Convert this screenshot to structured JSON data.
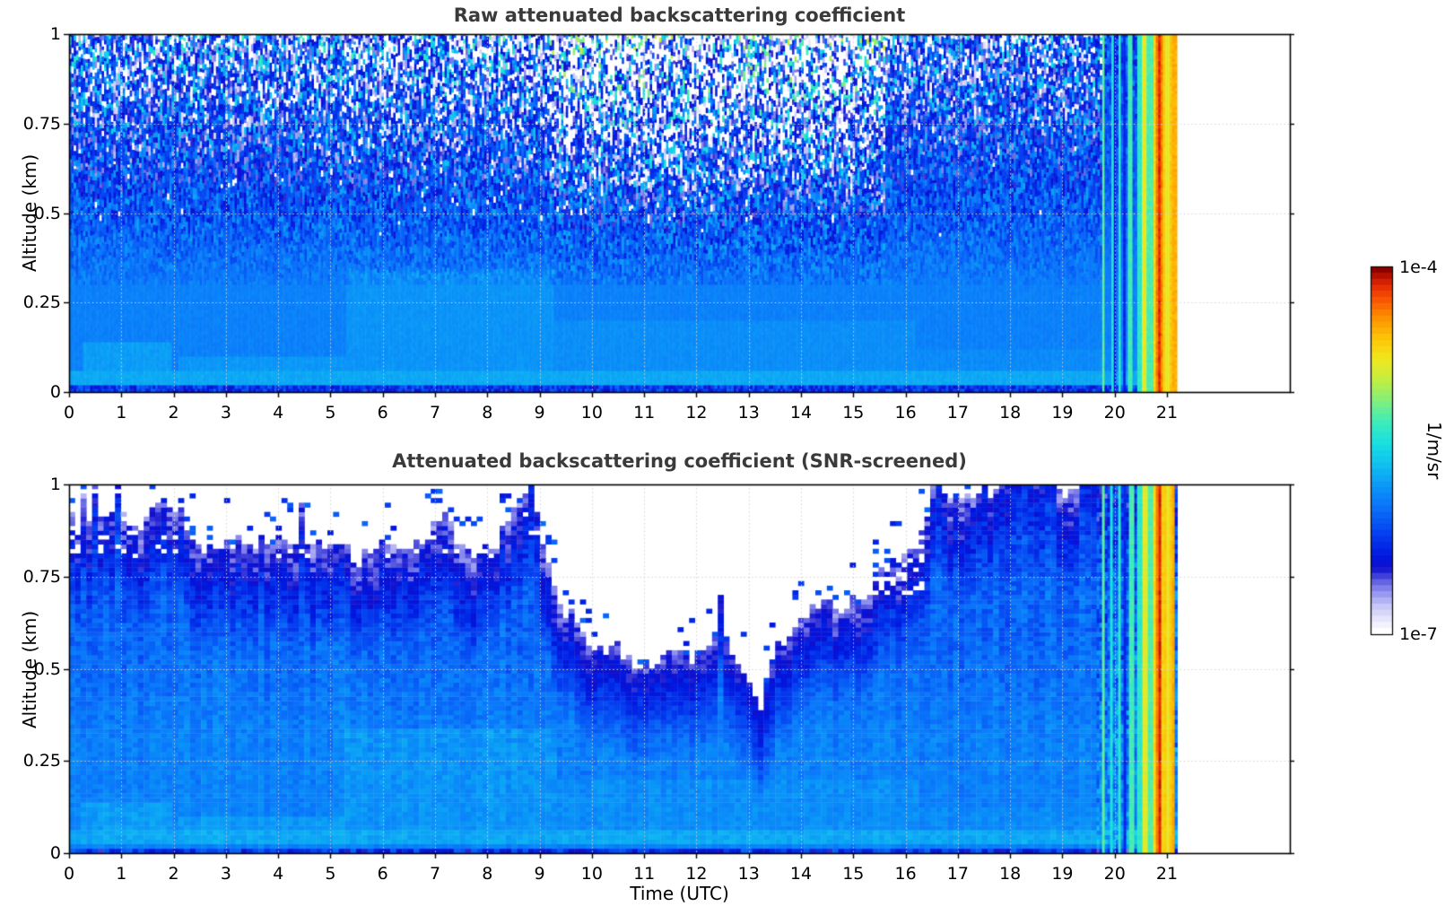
{
  "panels": [
    {
      "title": "Raw attenuated backscattering coefficient",
      "ylabel": "Altitude (km)",
      "xlabel": "",
      "x_tick_labels": [
        "0",
        "1",
        "2",
        "3",
        "4",
        "5",
        "6",
        "7",
        "8",
        "9",
        "10",
        "11",
        "12",
        "13",
        "14",
        "15",
        "16",
        "17",
        "18",
        "19",
        "20",
        "21"
      ],
      "y_tick_labels": [
        "0",
        "0.25",
        "0.5",
        "0.75",
        "1"
      ]
    },
    {
      "title": "Attenuated backscattering coefficient (SNR-screened)",
      "ylabel": "Altitude (km)",
      "xlabel": "Time (UTC)",
      "x_tick_labels": [
        "0",
        "1",
        "2",
        "3",
        "4",
        "5",
        "6",
        "7",
        "8",
        "9",
        "10",
        "11",
        "12",
        "13",
        "14",
        "15",
        "16",
        "17",
        "18",
        "19",
        "20",
        "21"
      ],
      "y_tick_labels": [
        "0",
        "0.25",
        "0.5",
        "0.75",
        "1"
      ]
    }
  ],
  "colorbar": {
    "top_label": "1e-4",
    "bottom_label": "1e-7",
    "unit_label": "1/m/sr"
  },
  "chart_data": {
    "type": "heatmap",
    "n_panels": 2,
    "panel_titles": [
      "Raw attenuated backscattering coefficient",
      "Attenuated backscattering coefficient (SNR-screened)"
    ],
    "x_axis": {
      "label": "Time (UTC)",
      "ticks": [
        0,
        1,
        2,
        3,
        4,
        5,
        6,
        7,
        8,
        9,
        10,
        11,
        12,
        13,
        14,
        15,
        16,
        17,
        18,
        19,
        20,
        21
      ],
      "range": [
        0,
        23.35
      ]
    },
    "y_axis": {
      "label": "Altitude (km)",
      "ticks": [
        0,
        0.25,
        0.5,
        0.75,
        1
      ],
      "range": [
        0,
        1
      ]
    },
    "color_axis": {
      "scale": "log",
      "vmin": 1e-07,
      "vmax": 0.0001,
      "unit": "1/m/sr"
    },
    "grid": {
      "on": true,
      "style": "dotted",
      "color": "#d2d2d2"
    },
    "colormap_stops": [
      [
        0.0,
        "#ffffff"
      ],
      [
        0.03,
        "#e8e8fc"
      ],
      [
        0.07,
        "#c6c6f6"
      ],
      [
        0.1,
        "#9b9bef"
      ],
      [
        0.13,
        "#6f6fe7"
      ],
      [
        0.155,
        "#3a3ad8"
      ],
      [
        0.175,
        "#0f0fce"
      ],
      [
        0.21,
        "#0018e0"
      ],
      [
        0.27,
        "#0540f0"
      ],
      [
        0.345,
        "#0a74fa"
      ],
      [
        0.4,
        "#0a96f8"
      ],
      [
        0.46,
        "#10c0f0"
      ],
      [
        0.52,
        "#18e0e0"
      ],
      [
        0.58,
        "#40ecb8"
      ],
      [
        0.64,
        "#84f078"
      ],
      [
        0.7,
        "#c8ee3c"
      ],
      [
        0.755,
        "#f2e71c"
      ],
      [
        0.815,
        "#fdc004"
      ],
      [
        0.87,
        "#fd8d01"
      ],
      [
        0.92,
        "#f85002"
      ],
      [
        0.96,
        "#e02504"
      ],
      [
        1.0,
        "#8e0000"
      ]
    ],
    "data_time_end": 21.17,
    "base_field": {
      "background": 1.25e-06,
      "upper_dim_per_km": 0.13,
      "surface_bright_band": {
        "alt": [
          0.025,
          0.06
        ],
        "value": 1.9e-06
      },
      "surface_dark_row": {
        "alt": [
          0.0,
          0.016
        ],
        "value": 5.5e-07
      },
      "bright_patches": [
        {
          "t": [
            0.25,
            1.95
          ],
          "alt": [
            0.06,
            0.14
          ],
          "value": 1.7e-06
        },
        {
          "t": [
            2.1,
            5.5
          ],
          "alt": [
            0.03,
            0.1
          ],
          "value": 1.6e-06
        },
        {
          "t": [
            5.3,
            9.3
          ],
          "alt": [
            0.05,
            0.34
          ],
          "value": 1.55e-06
        },
        {
          "t": [
            9.3,
            16.2
          ],
          "alt": [
            0.02,
            0.2
          ],
          "value": 1.45e-06
        },
        {
          "t": [
            16.2,
            21.0
          ],
          "alt": [
            0.02,
            0.12
          ],
          "value": 1.4e-06
        }
      ]
    },
    "panel1_noise_regions": [
      {
        "t": [
          0.0,
          5.3
        ],
        "intensity": 0.95
      },
      {
        "t": [
          5.3,
          9.2
        ],
        "intensity": 1.05
      },
      {
        "t": [
          9.2,
          15.6
        ],
        "intensity": 1.45
      },
      {
        "t": [
          15.6,
          19.74
        ],
        "intensity": 0.85
      },
      {
        "t": [
          19.74,
          21.17
        ],
        "intensity": 0.3
      }
    ],
    "panel2_mask_boundary": [
      [
        0,
        0.96
      ],
      [
        0.3,
        0.9
      ],
      [
        0.7,
        0.92
      ],
      [
        1.0,
        0.88
      ],
      [
        1.3,
        0.86
      ],
      [
        1.7,
        0.9
      ],
      [
        2.0,
        0.91
      ],
      [
        2.4,
        0.85
      ],
      [
        2.8,
        0.83
      ],
      [
        3.2,
        0.85
      ],
      [
        3.6,
        0.87
      ],
      [
        4.0,
        0.89
      ],
      [
        4.4,
        0.85
      ],
      [
        4.8,
        0.87
      ],
      [
        5.2,
        0.83
      ],
      [
        5.5,
        0.79
      ],
      [
        5.8,
        0.85
      ],
      [
        6.2,
        0.82
      ],
      [
        6.6,
        0.8
      ],
      [
        7.0,
        0.87
      ],
      [
        7.4,
        0.84
      ],
      [
        7.8,
        0.82
      ],
      [
        8.2,
        0.85
      ],
      [
        8.6,
        0.93
      ],
      [
        8.85,
        0.99
      ],
      [
        9.05,
        0.84
      ],
      [
        9.25,
        0.7
      ],
      [
        9.5,
        0.63
      ],
      [
        10.0,
        0.59
      ],
      [
        10.5,
        0.57
      ],
      [
        11.0,
        0.54
      ],
      [
        11.4,
        0.5
      ],
      [
        11.7,
        0.52
      ],
      [
        12.0,
        0.55
      ],
      [
        12.4,
        0.57
      ],
      [
        12.8,
        0.54
      ],
      [
        13.05,
        0.47
      ],
      [
        13.25,
        0.38
      ],
      [
        13.45,
        0.53
      ],
      [
        13.7,
        0.59
      ],
      [
        14.0,
        0.62
      ],
      [
        14.4,
        0.66
      ],
      [
        14.8,
        0.69
      ],
      [
        15.2,
        0.72
      ],
      [
        15.6,
        0.75
      ],
      [
        16.0,
        0.79
      ],
      [
        16.3,
        0.88
      ],
      [
        16.55,
        1.02
      ],
      [
        17.0,
        1.02
      ],
      [
        18.0,
        1.02
      ],
      [
        19.0,
        1.02
      ],
      [
        20.0,
        1.02
      ],
      [
        21.17,
        1.02
      ]
    ],
    "panel2_hole_regions": [
      {
        "t": [
          13.85,
          16.35
        ],
        "alt_above": 0.7,
        "p": 0.32
      },
      {
        "t": [
          0.0,
          9.2
        ],
        "alt_above": 0.8,
        "p": 0.12
      }
    ],
    "stripes": [
      {
        "t": [
          19.74,
          19.8
        ],
        "value": 6.5e-06
      },
      {
        "t": [
          19.92,
          19.98
        ],
        "value": 4e-06
      },
      {
        "t": [
          20.0,
          20.03
        ],
        "value": 4e-07
      },
      {
        "t": [
          20.08,
          20.14
        ],
        "value": 4.5e-06
      },
      {
        "t": [
          20.17,
          20.2
        ],
        "value": 5e-07
      },
      {
        "t": [
          20.26,
          20.36
        ],
        "value": 5.5e-06
      },
      {
        "t": [
          20.44,
          20.52
        ],
        "value": 4.5e-06
      },
      {
        "t": [
          20.52,
          20.62
        ],
        "value": 1.6e-05
      },
      {
        "t": [
          20.62,
          20.72
        ],
        "value": 6e-06
      },
      {
        "t": [
          20.72,
          20.8
        ],
        "value": 2.2e-05
      },
      {
        "t": [
          20.8,
          20.84
        ],
        "value": 4.5e-05
      },
      {
        "t": [
          20.84,
          20.87
        ],
        "value": 7.5e-05
      },
      {
        "t": [
          20.87,
          20.9
        ],
        "value": 4.5e-05
      },
      {
        "t": [
          20.9,
          20.97
        ],
        "value": 2.4e-05
      },
      {
        "t": [
          20.97,
          21.04
        ],
        "value": 1.7e-05
      },
      {
        "t": [
          21.04,
          21.11
        ],
        "value": 2.6e-05
      },
      {
        "t": [
          21.11,
          21.17
        ],
        "value": 3.2e-05
      }
    ]
  }
}
